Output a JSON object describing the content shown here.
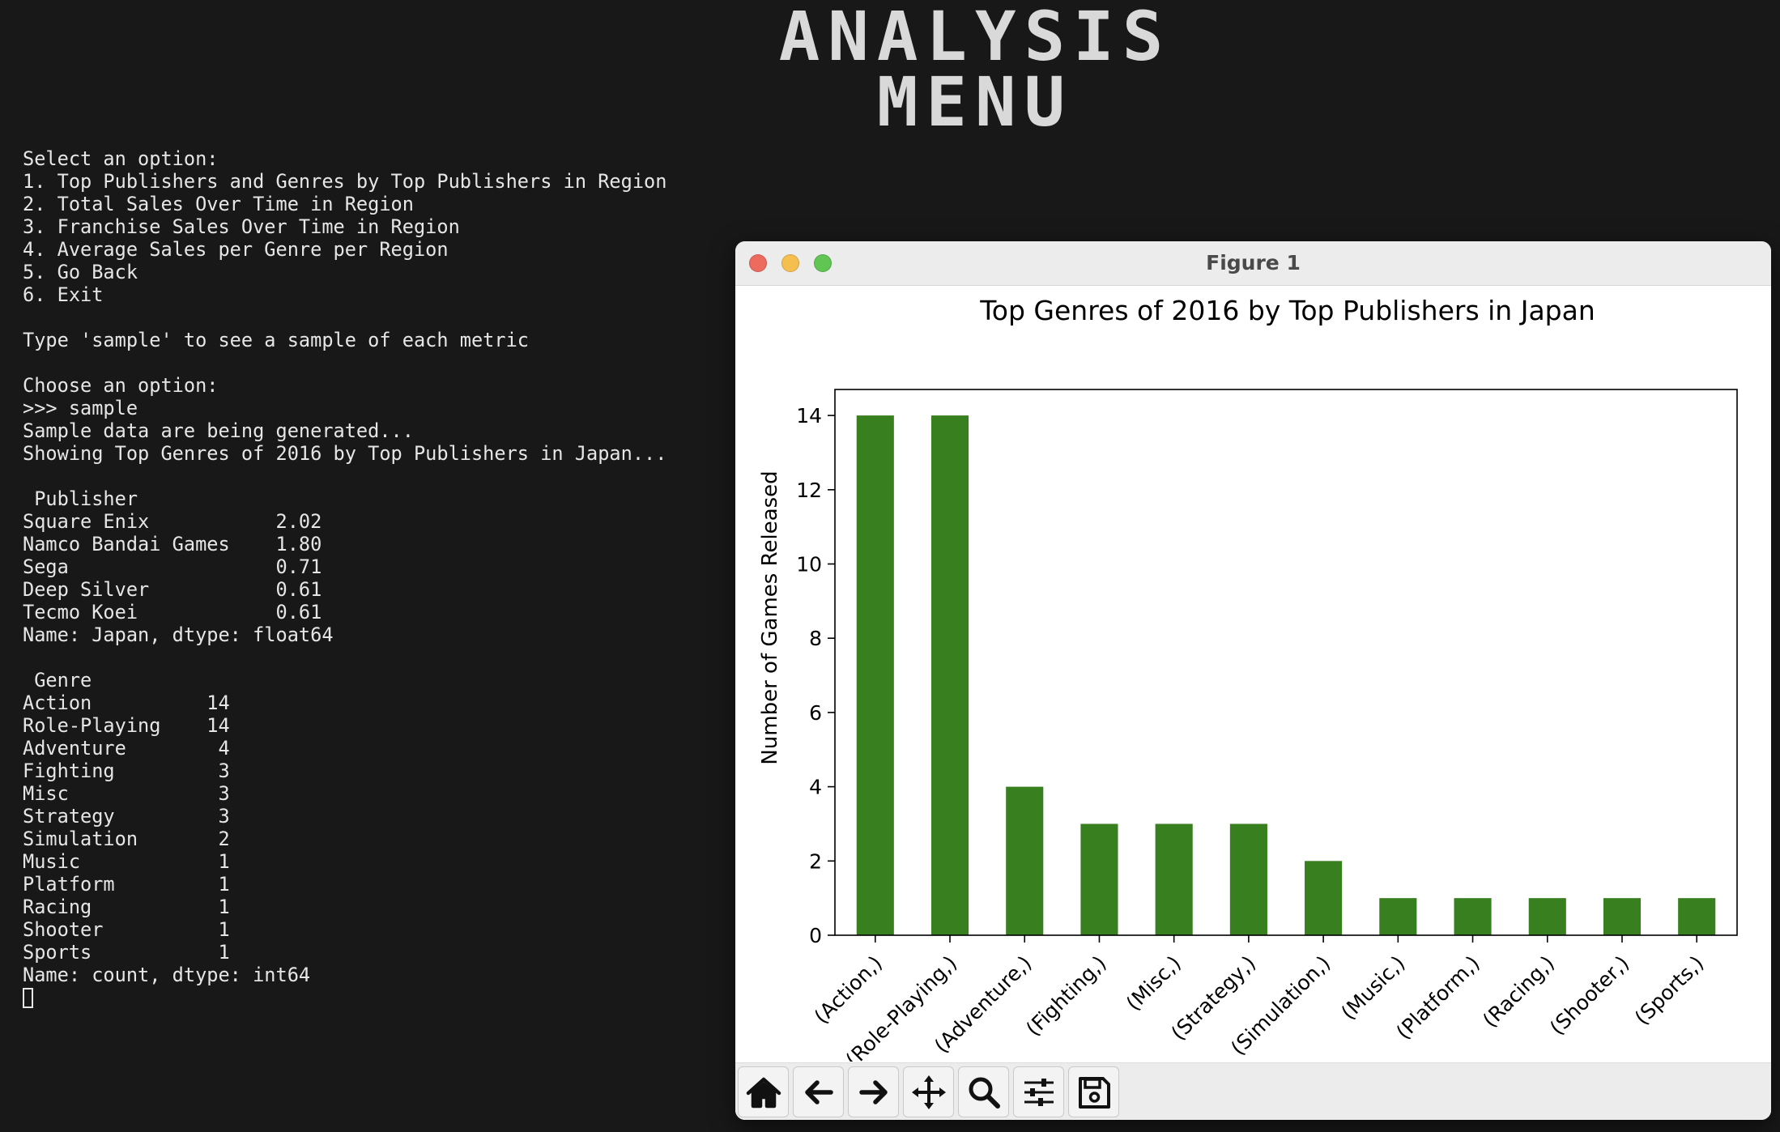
{
  "banner": {
    "line1": "ANALYSIS",
    "line2": "MENU"
  },
  "terminal": {
    "lines": [
      "Select an option:",
      "1. Top Publishers and Genres by Top Publishers in Region",
      "2. Total Sales Over Time in Region",
      "3. Franchise Sales Over Time in Region",
      "4. Average Sales per Genre per Region",
      "5. Go Back",
      "6. Exit",
      "",
      "Type 'sample' to see a sample of each metric",
      "",
      "Choose an option:",
      ">>> sample",
      "Sample data are being generated...",
      "Showing Top Genres of 2016 by Top Publishers in Japan...",
      "",
      " Publisher",
      "Square Enix           2.02",
      "Namco Bandai Games    1.80",
      "Sega                  0.71",
      "Deep Silver           0.61",
      "Tecmo Koei            0.61",
      "Name: Japan, dtype: float64",
      "",
      " Genre",
      "Action          14",
      "Role-Playing    14",
      "Adventure        4",
      "Fighting         3",
      "Misc             3",
      "Strategy         3",
      "Simulation       2",
      "Music            1",
      "Platform         1",
      "Racing           1",
      "Shooter          1",
      "Sports           1",
      "Name: count, dtype: int64"
    ]
  },
  "window": {
    "title": "Figure 1",
    "traffic_lights": [
      "close-button",
      "minimize-button",
      "zoom-button"
    ],
    "traffic_colors": [
      "#ed6a5e",
      "#f5bf4f",
      "#61c554"
    ]
  },
  "toolbar": {
    "buttons": [
      "home-icon",
      "back-arrow-icon",
      "forward-arrow-icon",
      "pan-icon",
      "zoom-magnifier-icon",
      "configure-subplots-icon",
      "save-icon"
    ]
  },
  "chart_data": {
    "type": "bar",
    "title": "Top Genres of 2016 by Top Publishers in Japan",
    "xlabel": "",
    "ylabel": "Number of Games Released",
    "categories": [
      "(Action,)",
      "(Role-Playing,)",
      "(Adventure,)",
      "(Fighting,)",
      "(Misc,)",
      "(Strategy,)",
      "(Simulation,)",
      "(Music,)",
      "(Platform,)",
      "(Racing,)",
      "(Shooter,)",
      "(Sports,)"
    ],
    "values": [
      14,
      14,
      4,
      3,
      3,
      3,
      2,
      1,
      1,
      1,
      1,
      1
    ],
    "ylim": [
      0,
      14.7
    ],
    "yticks": [
      0,
      2,
      4,
      6,
      8,
      10,
      12,
      14
    ],
    "bar_color": "#38801f",
    "grid": false,
    "legend": "none"
  }
}
